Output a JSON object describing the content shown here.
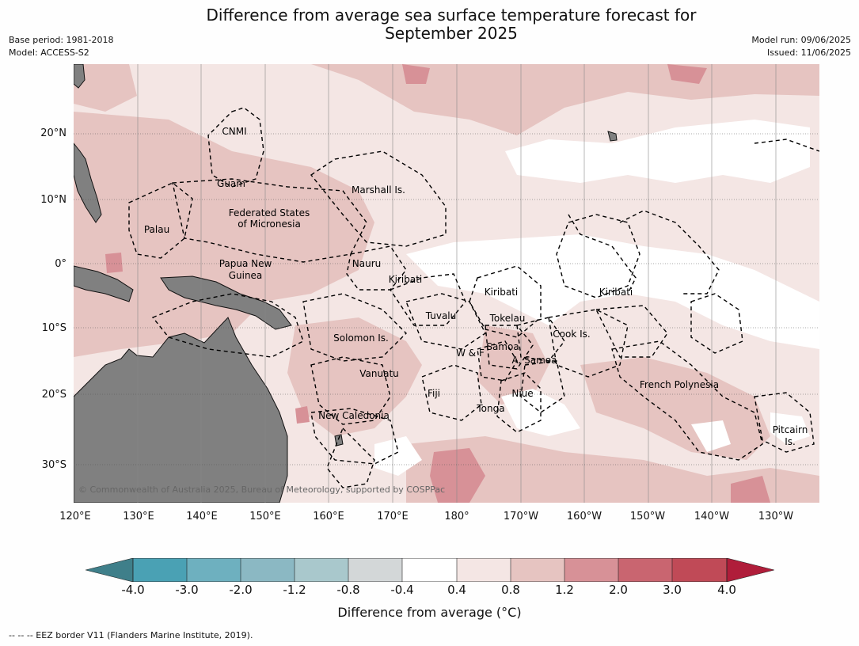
{
  "header": {
    "title_line1": "Difference from average sea surface temperature forecast for",
    "title_line2": "September 2025",
    "base_period": "Base period: 1981-2018",
    "model": "Model: ACCESS-S2",
    "model_run": "Model run: 09/06/2025",
    "issued": "Issued: 11/06/2025"
  },
  "map": {
    "lat_labels": [
      "20°N",
      "10°N",
      "0°",
      "10°S",
      "20°S",
      "30°S"
    ],
    "lon_labels": [
      "120°E",
      "130°E",
      "140°E",
      "150°E",
      "160°E",
      "170°E",
      "180°",
      "170°W",
      "160°W",
      "150°W",
      "140°W",
      "130°W"
    ],
    "regions": [
      "CNMI",
      "Guam",
      "Marshall Is.",
      "Federated States",
      "of Micronesia",
      "Palau",
      "Nauru",
      "Papua New",
      "Guinea",
      "Kiribati",
      "Kiribati",
      "Kiribati",
      "Tuvalu",
      "Tokelau",
      "Solomon Is.",
      "W & F",
      "Samoa",
      "A. Samoa",
      "Cook Is.",
      "Vanuatu",
      "Fiji",
      "Niue",
      "Tonga",
      "French Polynesia",
      "New Caledonia",
      "Pitcairn",
      "Is."
    ],
    "copyright": "© Commonwealth of Australia 2025, Bureau of Meteorology, supported by COSPPac"
  },
  "colorbar": {
    "colors": [
      "#3f7f8a",
      "#4aa1b4",
      "#6eb0bf",
      "#8bb8c3",
      "#a9c8cc",
      "#d3d7d8",
      "#ffffff",
      "#f4e6e4",
      "#e6c4c1",
      "#d79197",
      "#c96570",
      "#c04a57",
      "#b01d3a"
    ],
    "ticks": [
      "-4.0",
      "-3.0",
      "-2.0",
      "-1.2",
      "-0.8",
      "-0.4",
      "0.4",
      "0.8",
      "1.2",
      "2.0",
      "3.0",
      "4.0"
    ],
    "label": "Difference from average (°C)"
  },
  "footnote": "--  --  -- EEZ border V11 (Flanders Marine Institute, 2019)."
}
